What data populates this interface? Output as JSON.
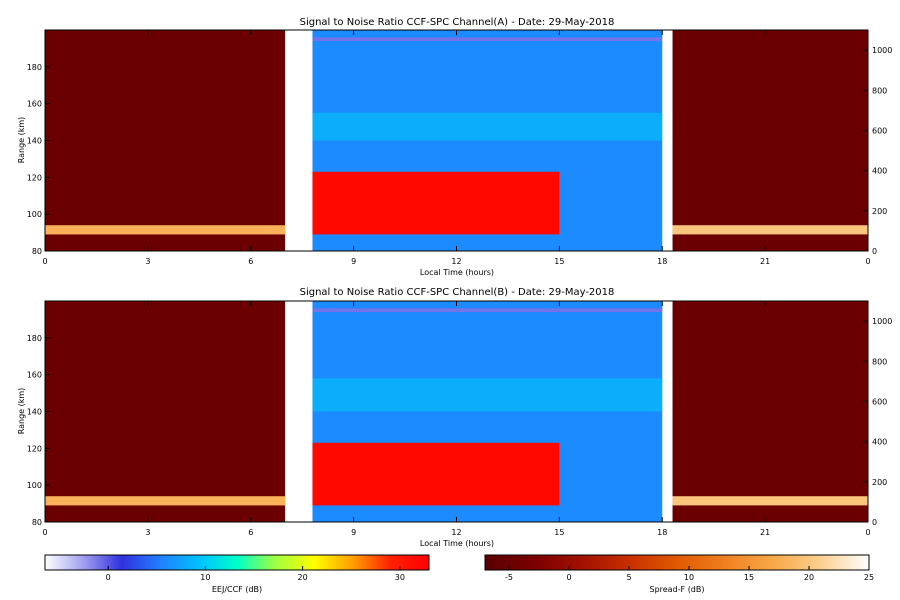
{
  "chart_data": [
    {
      "type": "heatmap",
      "title": "Signal to Noise Ratio CCF-SPC Channel(A) - Date: 29-May-2018",
      "xlabel": "Local Time (hours)",
      "ylabel": "Range (km)",
      "x_ticks": [
        "0",
        "3",
        "6",
        "9",
        "12",
        "15",
        "18",
        "21",
        "0"
      ],
      "y_left_ticks": [
        "80",
        "100",
        "120",
        "140",
        "160",
        "180"
      ],
      "y_right_ticks": [
        "0",
        "200",
        "400",
        "600",
        "800",
        "1000"
      ],
      "xlim": [
        0,
        24
      ],
      "ylim_left": [
        80,
        200
      ],
      "ylim_right": [
        0,
        1100
      ],
      "segments": [
        {
          "name": "night-morning",
          "x_range": [
            0,
            7
          ],
          "scale": "Spread-F",
          "background_db": -5,
          "layers": [
            {
              "range_km": [
                89,
                94
              ],
              "db": 18
            }
          ]
        },
        {
          "name": "daytime",
          "x_range": [
            7.8,
            18
          ],
          "scale": "EEJ/CCF",
          "background_db": 6,
          "layers": [
            {
              "name": "echo-band",
              "x_range": [
                7.8,
                15
              ],
              "range_km": [
                89,
                123
              ],
              "db": 32
            },
            {
              "name": "upper-echo",
              "range_km": [
                140,
                155
              ],
              "db": 10
            },
            {
              "name": "top-band",
              "range_km": [
                194,
                196
              ],
              "db": -1
            }
          ]
        },
        {
          "name": "evening-night",
          "x_range": [
            18.3,
            24
          ],
          "scale": "Spread-F",
          "background_db": -5,
          "layers": [
            {
              "range_km": [
                89,
                94
              ],
              "db": 20
            }
          ]
        }
      ]
    },
    {
      "type": "heatmap",
      "title": "Signal to Noise Ratio CCF-SPC Channel(B) - Date: 29-May-2018",
      "xlabel": "Local Time (hours)",
      "ylabel": "Range (km)",
      "x_ticks": [
        "0",
        "3",
        "6",
        "9",
        "12",
        "15",
        "18",
        "21",
        "0"
      ],
      "y_left_ticks": [
        "80",
        "100",
        "120",
        "140",
        "160",
        "180"
      ],
      "y_right_ticks": [
        "0",
        "200",
        "400",
        "600",
        "800",
        "1000"
      ],
      "xlim": [
        0,
        24
      ],
      "ylim_left": [
        80,
        200
      ],
      "ylim_right": [
        0,
        1100
      ],
      "segments": [
        {
          "name": "night-morning",
          "x_range": [
            0,
            7
          ],
          "scale": "Spread-F",
          "background_db": -5,
          "layers": [
            {
              "range_km": [
                89,
                94
              ],
              "db": 18
            }
          ]
        },
        {
          "name": "daytime",
          "x_range": [
            7.8,
            18
          ],
          "scale": "EEJ/CCF",
          "background_db": 6,
          "layers": [
            {
              "name": "echo-band",
              "x_range": [
                7.8,
                15
              ],
              "range_km": [
                89,
                123
              ],
              "db": 32
            },
            {
              "name": "upper-echo",
              "range_km": [
                140,
                158
              ],
              "db": 10
            },
            {
              "name": "top-band",
              "range_km": [
                194,
                196
              ],
              "db": -1
            }
          ]
        },
        {
          "name": "evening-night",
          "x_range": [
            18.3,
            24
          ],
          "scale": "Spread-F",
          "background_db": -5,
          "layers": [
            {
              "range_km": [
                89,
                94
              ],
              "db": 20
            }
          ]
        }
      ]
    }
  ],
  "colorbars": [
    {
      "name": "eej-ccf",
      "label": "EEJ/CCF (dB)",
      "ticks": [
        "0",
        "10",
        "20",
        "30"
      ],
      "range": [
        -6.5,
        33
      ],
      "colors": [
        "#ffffff",
        "#a0a0f0",
        "#3030e0",
        "#2080ff",
        "#00c0ff",
        "#00ffc8",
        "#a0ff40",
        "#ffff00",
        "#ffa000",
        "#ff2000",
        "#ff0000"
      ]
    },
    {
      "name": "spread-f",
      "label": "Spread-F (dB)",
      "ticks": [
        "-5",
        "0",
        "5",
        "10",
        "15",
        "20",
        "25"
      ],
      "range": [
        -7,
        25
      ],
      "colors": [
        "#5a0000",
        "#7a0000",
        "#a01000",
        "#c83000",
        "#e05a00",
        "#f08020",
        "#f8a848",
        "#fbd090",
        "#ffffff"
      ]
    }
  ]
}
